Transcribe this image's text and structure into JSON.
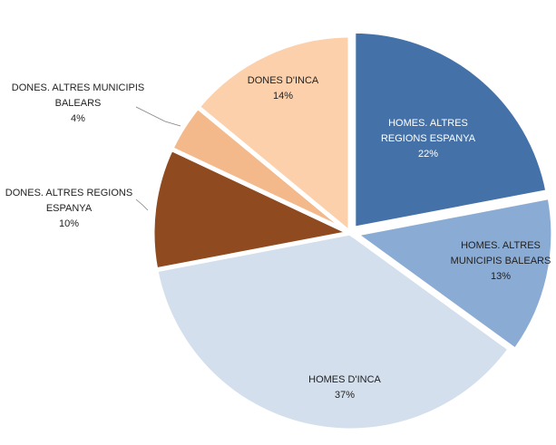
{
  "chart_data": {
    "type": "pie",
    "title": "",
    "start_angle_deg": 0,
    "direction": "clockwise",
    "slices": [
      {
        "label_lines": [
          "HOMES. ALTRES",
          "REGIONS ESPANYA"
        ],
        "pct_label": "22%",
        "value": 22,
        "color": "#4472a8",
        "label_color": "#ffffff"
      },
      {
        "label_lines": [
          "HOMES. ALTRES",
          "MUNICIPIS BALEARS"
        ],
        "pct_label": "13%",
        "value": 13,
        "color": "#8aabd4",
        "label_color": "#1f1f1f"
      },
      {
        "label_lines": [
          "HOMES D'INCA"
        ],
        "pct_label": "37%",
        "value": 37,
        "color": "#d3dfec",
        "label_color": "#1f1f1f"
      },
      {
        "label_lines": [
          "DONES. ALTRES REGIONS",
          "ESPANYA"
        ],
        "pct_label": "10%",
        "value": 10,
        "color": "#8f4b1f",
        "label_color": "#1f1f1f"
      },
      {
        "label_lines": [
          "DONES. ALTRES MUNICIPIS",
          "BALEARS"
        ],
        "pct_label": "4%",
        "value": 4,
        "color": "#f3b98a",
        "label_color": "#1f1f1f"
      },
      {
        "label_lines": [
          "DONES D'INCA"
        ],
        "pct_label": "14%",
        "value": 14,
        "color": "#fbd0ab",
        "label_color": "#1f1f1f"
      }
    ],
    "legend": "none"
  }
}
